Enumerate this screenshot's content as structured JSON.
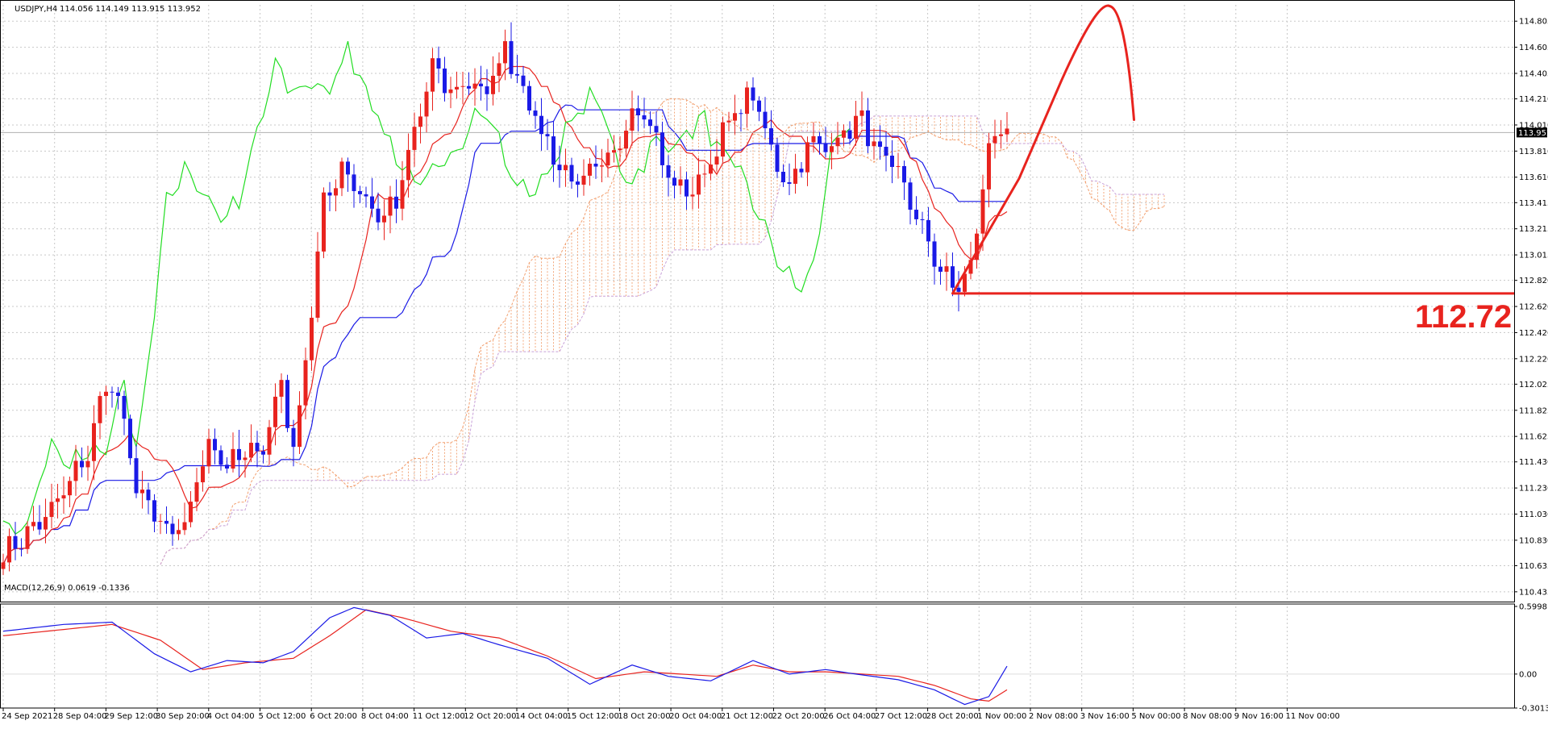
{
  "chart_data": [
    {
      "type": "candlestick",
      "symbol_label": "USDJPY,H4",
      "ohlc_label": "114.056 114.149 113.915 113.952",
      "current_price_label": "113.952",
      "ylim": [
        110.36,
        114.93
      ],
      "y_ticks": [
        "114.805",
        "114.605",
        "114.405",
        "114.210",
        "114.010",
        "113.810",
        "113.610",
        "113.415",
        "113.215",
        "113.015",
        "112.820",
        "112.620",
        "112.420",
        "112.220",
        "112.025",
        "111.825",
        "111.625",
        "111.430",
        "111.230",
        "111.030",
        "110.830",
        "110.635",
        "110.435"
      ],
      "x_labels": [
        "24 Sep 2021",
        "28 Sep 04:00",
        "29 Sep 12:00",
        "30 Sep 20:00",
        "4 Oct 04:00",
        "5 Oct 12:00",
        "6 Oct 20:00",
        "8 Oct 04:00",
        "11 Oct 12:00",
        "12 Oct 20:00",
        "14 Oct 04:00",
        "15 Oct 12:00",
        "18 Oct 20:00",
        "20 Oct 04:00",
        "21 Oct 12:00",
        "22 Oct 20:00",
        "26 Oct 04:00",
        "27 Oct 12:00",
        "28 Oct 20:00",
        "1 Nov 00:00",
        "2 Nov 08:00",
        "3 Nov 16:00",
        "5 Nov 00:00",
        "8 Nov 08:00",
        "9 Nov 16:00",
        "11 Nov 00:00"
      ],
      "bars": 194,
      "close_keypoints": [
        [
          0,
          110.72
        ],
        [
          8,
          111.05
        ],
        [
          14,
          111.5
        ],
        [
          17,
          112.05
        ],
        [
          19,
          111.9
        ],
        [
          22,
          111.25
        ],
        [
          25,
          111.0
        ],
        [
          28,
          110.85
        ],
        [
          30,
          110.95
        ],
        [
          34,
          111.6
        ],
        [
          37,
          111.4
        ],
        [
          40,
          111.48
        ],
        [
          43,
          111.55
        ],
        [
          46,
          112.05
        ],
        [
          48,
          111.5
        ],
        [
          51,
          112.6
        ],
        [
          53,
          113.4
        ],
        [
          56,
          113.7
        ],
        [
          59,
          113.5
        ],
        [
          62,
          113.3
        ],
        [
          65,
          113.4
        ],
        [
          68,
          113.95
        ],
        [
          71,
          114.45
        ],
        [
          74,
          114.25
        ],
        [
          77,
          114.35
        ],
        [
          80,
          114.25
        ],
        [
          83,
          114.6
        ],
        [
          86,
          114.3
        ],
        [
          89,
          113.95
        ],
        [
          92,
          113.7
        ],
        [
          95,
          113.55
        ],
        [
          98,
          113.65
        ],
        [
          101,
          113.8
        ],
        [
          104,
          114.15
        ],
        [
          107,
          114.05
        ],
        [
          109,
          113.7
        ],
        [
          112,
          113.5
        ],
        [
          115,
          113.55
        ],
        [
          118,
          113.85
        ],
        [
          121,
          114.1
        ],
        [
          124,
          114.25
        ],
        [
          127,
          113.8
        ],
        [
          130,
          113.55
        ],
        [
          133,
          113.85
        ],
        [
          136,
          113.85
        ],
        [
          139,
          113.95
        ],
        [
          142,
          114.05
        ],
        [
          145,
          113.75
        ],
        [
          148,
          113.65
        ],
        [
          151,
          113.3
        ],
        [
          154,
          113.0
        ],
        [
          157,
          112.75
        ],
        [
          160,
          112.9
        ],
        [
          163,
          113.85
        ],
        [
          165,
          114.0
        ],
        [
          166,
          113.95
        ]
      ],
      "red_trend_line_points": [
        [
          157,
          112.72
        ],
        [
          168,
          113.6
        ],
        [
          175,
          114.35
        ],
        [
          183,
          114.92
        ],
        [
          187,
          114.05
        ]
      ],
      "support_line_price": 112.72,
      "support_label": "112.72"
    },
    {
      "type": "line",
      "name": "MACD",
      "label": "MACD(12,26,9) 0.0619 -0.1336",
      "ylim": [
        -0.3013,
        0.5998
      ],
      "y_ticks": [
        "0.5998",
        "0.00",
        "-0.3013"
      ],
      "main_keypoints": [
        [
          0,
          0.38
        ],
        [
          10,
          0.44
        ],
        [
          18,
          0.46
        ],
        [
          25,
          0.18
        ],
        [
          31,
          0.02
        ],
        [
          37,
          0.12
        ],
        [
          43,
          0.1
        ],
        [
          48,
          0.2
        ],
        [
          54,
          0.5
        ],
        [
          58,
          0.59
        ],
        [
          64,
          0.52
        ],
        [
          70,
          0.32
        ],
        [
          76,
          0.36
        ],
        [
          82,
          0.26
        ],
        [
          90,
          0.14
        ],
        [
          97,
          -0.09
        ],
        [
          104,
          0.08
        ],
        [
          110,
          -0.02
        ],
        [
          117,
          -0.06
        ],
        [
          124,
          0.12
        ],
        [
          130,
          0.0
        ],
        [
          136,
          0.04
        ],
        [
          141,
          0.0
        ],
        [
          148,
          -0.05
        ],
        [
          154,
          -0.14
        ],
        [
          159,
          -0.27
        ],
        [
          163,
          -0.2
        ],
        [
          166,
          0.07
        ]
      ],
      "signal_keypoints": [
        [
          0,
          0.34
        ],
        [
          18,
          0.44
        ],
        [
          26,
          0.3
        ],
        [
          33,
          0.04
        ],
        [
          40,
          0.1
        ],
        [
          48,
          0.14
        ],
        [
          54,
          0.34
        ],
        [
          60,
          0.57
        ],
        [
          66,
          0.5
        ],
        [
          74,
          0.38
        ],
        [
          82,
          0.32
        ],
        [
          90,
          0.16
        ],
        [
          98,
          -0.04
        ],
        [
          106,
          0.02
        ],
        [
          112,
          0.0
        ],
        [
          118,
          -0.02
        ],
        [
          124,
          0.08
        ],
        [
          130,
          0.02
        ],
        [
          136,
          0.02
        ],
        [
          142,
          0.0
        ],
        [
          148,
          -0.02
        ],
        [
          154,
          -0.1
        ],
        [
          160,
          -0.22
        ],
        [
          163,
          -0.24
        ],
        [
          166,
          -0.14
        ]
      ]
    }
  ],
  "colors": {
    "bull": "#e8231e",
    "bear": "#1a1ae6",
    "tenkan": "#e8231e",
    "kijun": "#1a1ae6",
    "chikou": "#22dd22",
    "cloud": "#f2a070",
    "grid": "#c8c8c8",
    "macd_main": "#1a1ae6",
    "macd_signal": "#e8231e",
    "trend": "#e8231e",
    "price_tag_bg": "#000000"
  }
}
